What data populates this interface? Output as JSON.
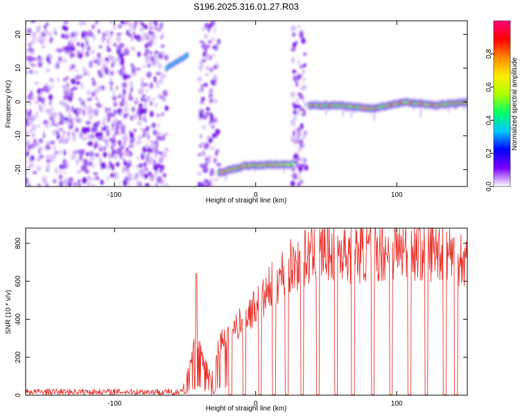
{
  "page": {
    "title": "S196.2025.316.01.27.R03"
  },
  "chart_data": [
    {
      "type": "heatmap",
      "title": "S196.2025.316.01.27.R03",
      "xlabel": "Height of straight line (km)",
      "ylabel": "Frequency (Hz)",
      "xlim": [
        -163,
        150
      ],
      "ylim": [
        -25,
        24
      ],
      "x_ticks": [
        -100,
        0,
        100
      ],
      "x_tick_labels": [
        "-100",
        "0",
        "100"
      ],
      "y_ticks": [
        -20,
        -10,
        0,
        10,
        20
      ],
      "y_tick_labels": [
        "-20",
        "-10",
        "0",
        "10",
        "20"
      ],
      "colorbar": {
        "label": "Normalized spectral amplitude",
        "range": [
          0,
          1
        ],
        "ticks": [
          0.0,
          0.2,
          0.4,
          0.6,
          0.8
        ],
        "tick_labels": [
          "0.0",
          "0.2",
          "0.4",
          "0.6",
          "0.8"
        ],
        "colormap": "rainbow",
        "colors": [
          "#ffffff",
          "#7a00ff",
          "#0000ff",
          "#00c8ff",
          "#00ff66",
          "#aaff00",
          "#ffee00",
          "#ff8800",
          "#ff0000",
          "#ff0080"
        ]
      },
      "features": [
        {
          "name": "noise",
          "x": [
            -163,
            -63
          ],
          "freq_range": [
            -25,
            24
          ],
          "level": 0.1
        },
        {
          "name": "noise",
          "x": [
            -40,
            -26
          ],
          "freq_range": [
            -25,
            24
          ],
          "level": 0.1
        },
        {
          "name": "noise",
          "x": [
            26,
            36
          ],
          "freq_range": [
            -25,
            24
          ],
          "level": 0.1
        },
        {
          "name": "rising-tone",
          "x": [
            -63,
            -48
          ],
          "freq": [
            10,
            14
          ],
          "level": 0.3
        },
        {
          "name": "carrier",
          "x": [
            -26,
            26
          ],
          "freq": [
            -21,
            -19,
            -18.5,
            -18.5
          ],
          "level": 0.75
        },
        {
          "name": "carrier",
          "x": [
            38,
            150
          ],
          "freq": [
            -1,
            -1,
            -2,
            0,
            -1,
            0
          ],
          "level": 0.85
        }
      ]
    },
    {
      "type": "line",
      "xlabel": "Height of straight line (km)",
      "ylabel": "SNR (10 * v/v)",
      "xlim": [
        -163,
        150
      ],
      "ylim": [
        0,
        880
      ],
      "x_ticks": [
        -100,
        0,
        100
      ],
      "x_tick_labels": [
        "-100",
        "0",
        "100"
      ],
      "y_ticks": [
        0,
        200,
        400,
        600,
        800
      ],
      "y_tick_labels": [
        "0",
        "200",
        "400",
        "600",
        "800"
      ],
      "color": "#e8322b",
      "envelope": {
        "x": [
          -163,
          -60,
          -52,
          -48,
          -44,
          -40,
          -36,
          -30,
          -26,
          -20,
          -12,
          -5,
          0,
          5,
          10,
          20,
          30,
          40,
          50,
          60,
          70,
          80,
          90,
          100,
          110,
          120,
          130,
          140,
          150
        ],
        "y": [
          18,
          18,
          20,
          80,
          250,
          300,
          140,
          60,
          280,
          300,
          380,
          430,
          470,
          500,
          560,
          650,
          700,
          740,
          760,
          760,
          750,
          760,
          760,
          770,
          760,
          760,
          770,
          760,
          700
        ]
      },
      "dropouts_x": [
        -18,
        -8,
        3,
        13,
        22,
        33,
        44,
        57,
        69,
        83,
        96,
        109,
        121,
        134,
        142
      ]
    }
  ]
}
